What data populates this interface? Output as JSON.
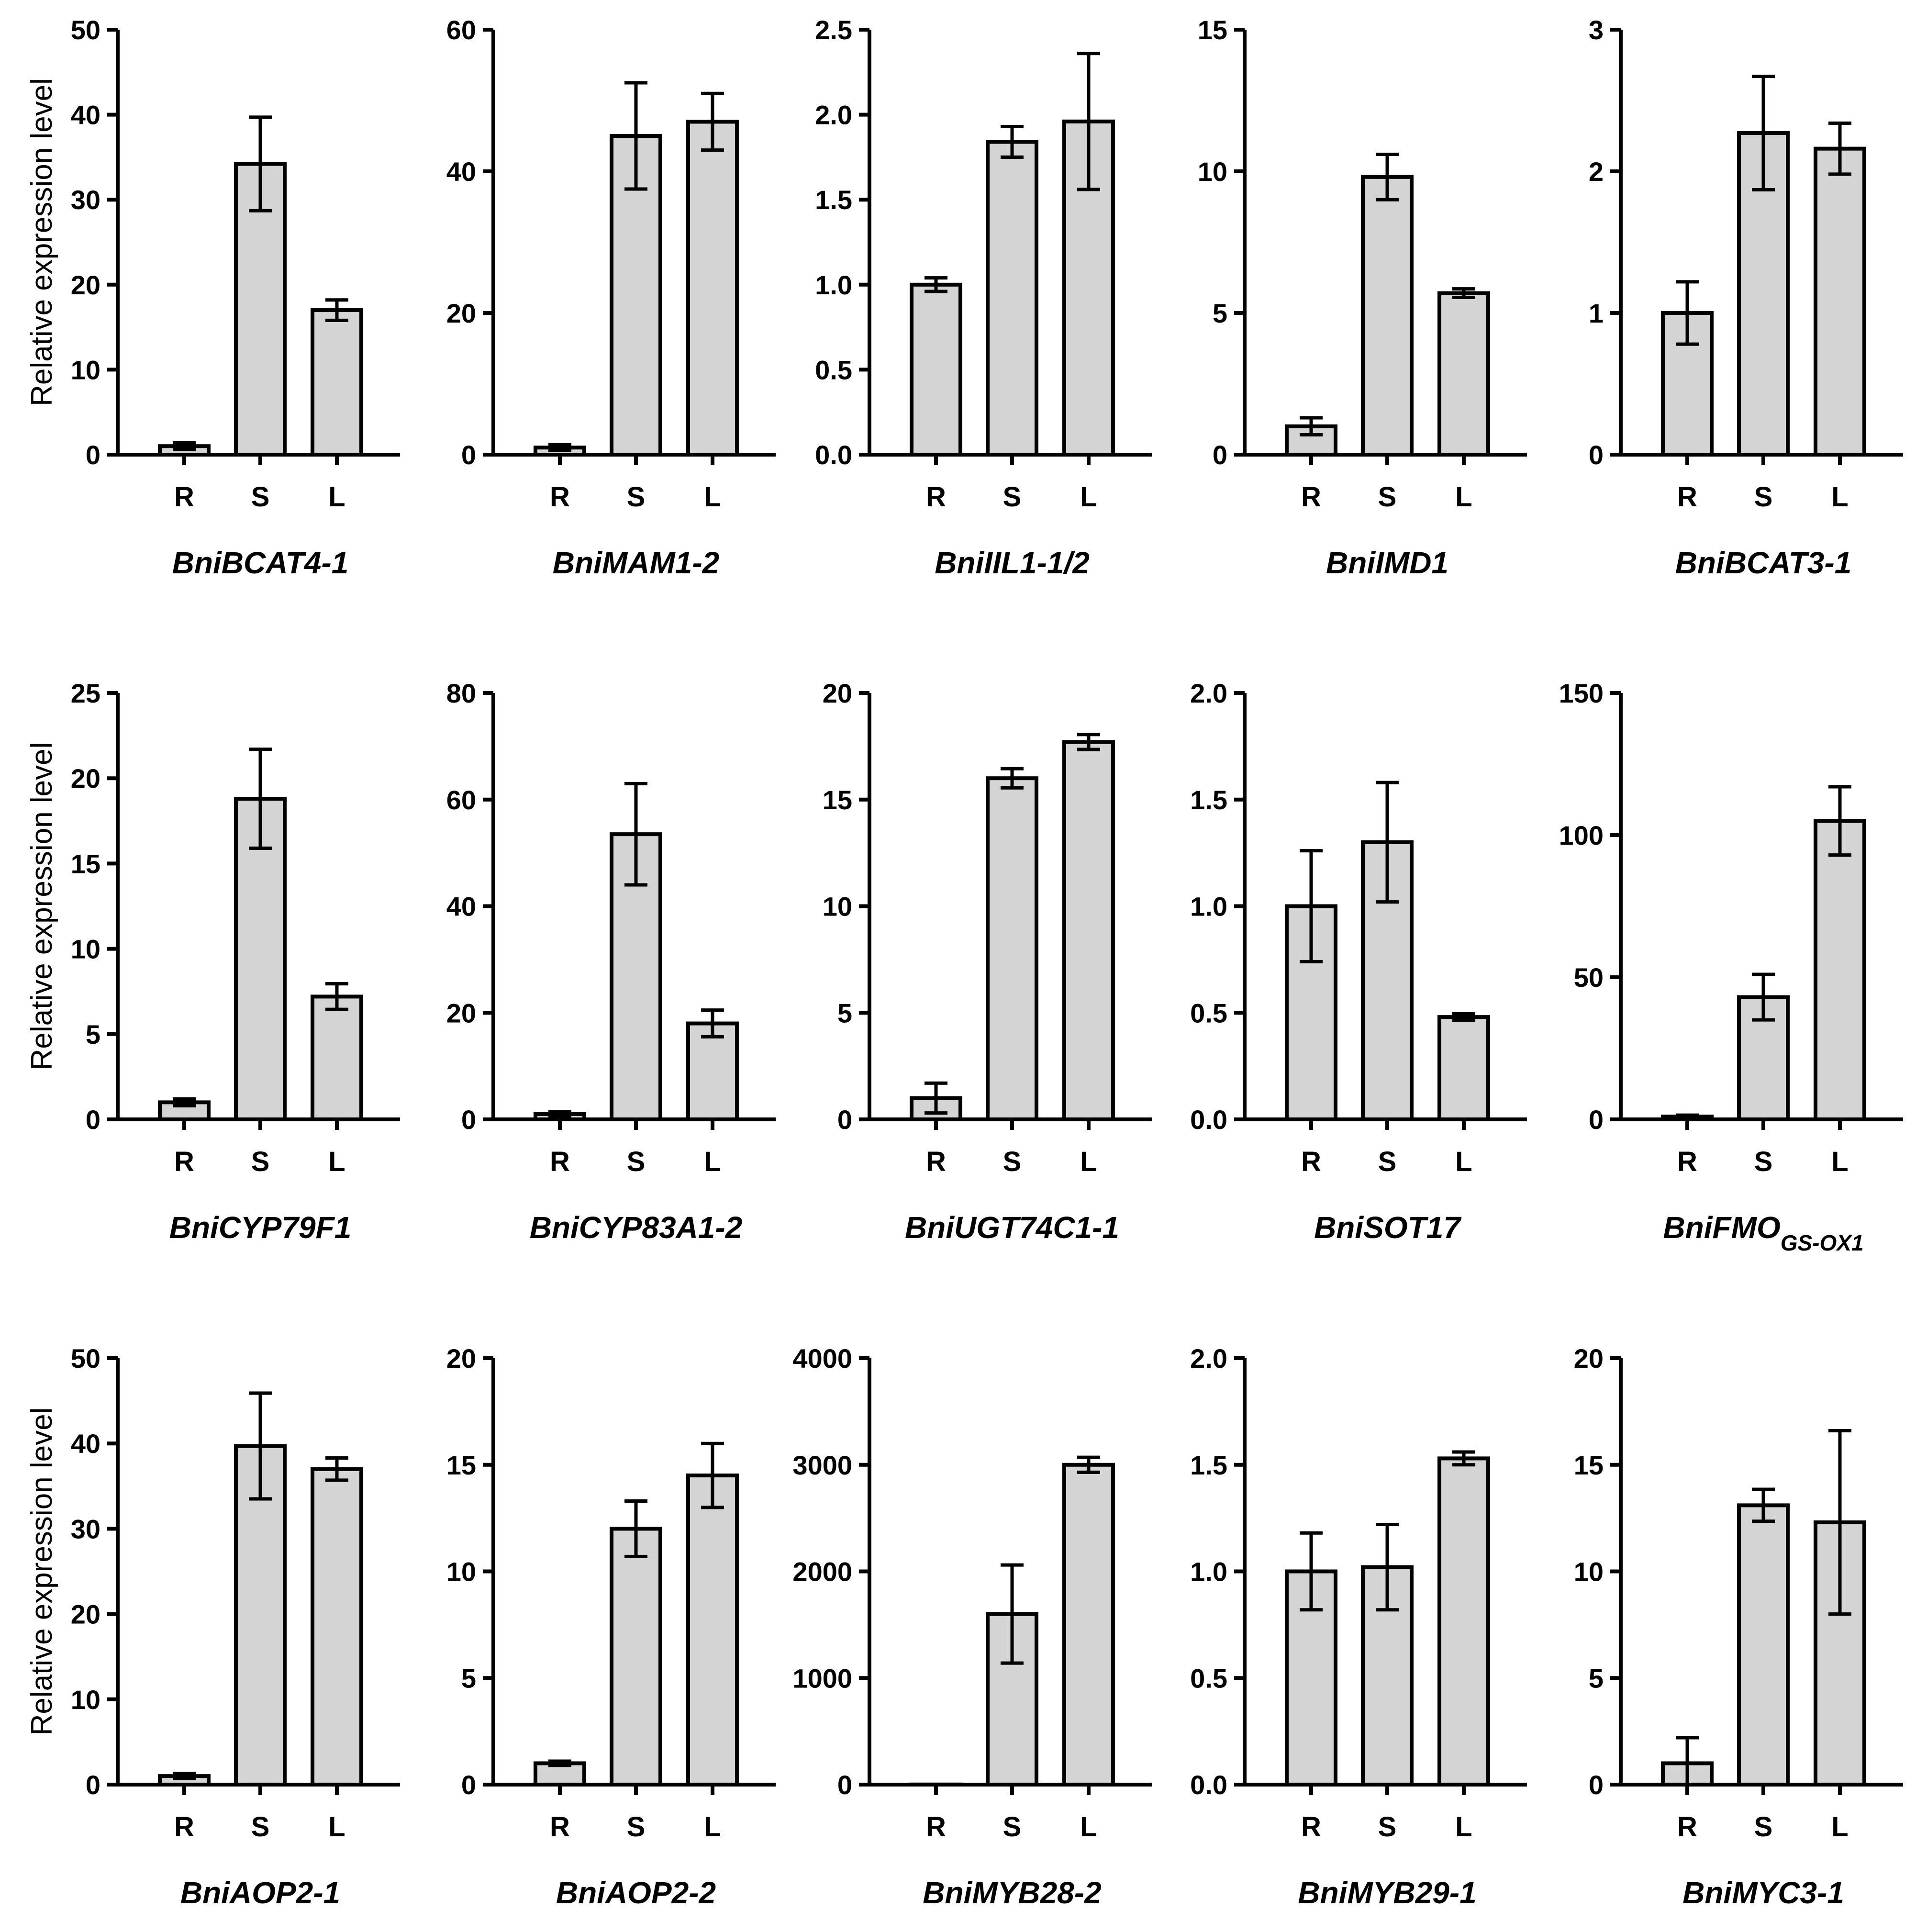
{
  "chart_data": [
    {
      "type": "bar",
      "title": "BniBCAT4-1",
      "ylabel": "Relative expression level",
      "categories": [
        "R",
        "S",
        "L"
      ],
      "values": [
        1,
        34.2,
        17
      ],
      "errors": [
        0.4,
        5.5,
        1.2
      ],
      "ylim": [
        0,
        50
      ],
      "yticks": [
        "0",
        "10",
        "20",
        "30",
        "40",
        "50"
      ]
    },
    {
      "type": "bar",
      "title": "BniMAM1-2",
      "ylabel": "",
      "categories": [
        "R",
        "S",
        "L"
      ],
      "values": [
        1,
        45,
        47
      ],
      "errors": [
        0.4,
        7.5,
        4
      ],
      "ylim": [
        0,
        60
      ],
      "yticks": [
        "0",
        "20",
        "40",
        "60"
      ]
    },
    {
      "type": "bar",
      "title": "BniIIL1-1/2",
      "ylabel": "",
      "categories": [
        "R",
        "S",
        "L"
      ],
      "values": [
        1,
        1.84,
        1.96
      ],
      "errors": [
        0.04,
        0.09,
        0.4
      ],
      "ylim": [
        0,
        2.5
      ],
      "yticks": [
        "0.0",
        "0.5",
        "1.0",
        "1.5",
        "2.0",
        "2.5"
      ]
    },
    {
      "type": "bar",
      "title": "BniIMD1",
      "ylabel": "",
      "categories": [
        "R",
        "S",
        "L"
      ],
      "values": [
        1,
        9.8,
        5.7
      ],
      "errors": [
        0.3,
        0.8,
        0.15
      ],
      "ylim": [
        0,
        15
      ],
      "yticks": [
        "0",
        "5",
        "10",
        "15"
      ]
    },
    {
      "type": "bar",
      "title": "BniBCAT3-1",
      "ylabel": "",
      "categories": [
        "R",
        "S",
        "L"
      ],
      "values": [
        1,
        2.27,
        2.16
      ],
      "errors": [
        0.22,
        0.4,
        0.18
      ],
      "ylim": [
        0,
        3
      ],
      "yticks": [
        "0",
        "1",
        "2",
        "3"
      ]
    },
    {
      "type": "bar",
      "title": "BniCYP79F1",
      "ylabel": "Relative expression level",
      "categories": [
        "R",
        "S",
        "L"
      ],
      "values": [
        1,
        18.8,
        7.2
      ],
      "errors": [
        0.2,
        2.9,
        0.75
      ],
      "ylim": [
        0,
        25
      ],
      "yticks": [
        "0",
        "5",
        "10",
        "15",
        "20",
        "25"
      ]
    },
    {
      "type": "bar",
      "title": "BniCYP83A1-2",
      "ylabel": "",
      "categories": [
        "R",
        "S",
        "L"
      ],
      "values": [
        1,
        53.5,
        18
      ],
      "errors": [
        0.4,
        9.5,
        2.5
      ],
      "ylim": [
        0,
        80
      ],
      "yticks": [
        "0",
        "20",
        "40",
        "60",
        "80"
      ]
    },
    {
      "type": "bar",
      "title": "BniUGT74C1-1",
      "ylabel": "",
      "categories": [
        "R",
        "S",
        "L"
      ],
      "values": [
        1,
        16,
        17.7
      ],
      "errors": [
        0.7,
        0.45,
        0.35
      ],
      "ylim": [
        0,
        20
      ],
      "yticks": [
        "0",
        "5",
        "10",
        "15",
        "20"
      ]
    },
    {
      "type": "bar",
      "title": "BniSOT17",
      "ylabel": "",
      "categories": [
        "R",
        "S",
        "L"
      ],
      "values": [
        1,
        1.3,
        0.48
      ],
      "errors": [
        0.26,
        0.28,
        0.015
      ],
      "ylim": [
        0,
        2
      ],
      "yticks": [
        "0.0",
        "0.5",
        "1.0",
        "1.5",
        "2.0"
      ]
    },
    {
      "type": "bar",
      "title": "BniFMO",
      "title_sub": "GS-OX1",
      "ylabel": "",
      "categories": [
        "R",
        "S",
        "L"
      ],
      "values": [
        1,
        43,
        105
      ],
      "errors": [
        0.5,
        8,
        12
      ],
      "ylim": [
        0,
        150
      ],
      "yticks": [
        "0",
        "50",
        "100",
        "150"
      ]
    },
    {
      "type": "bar",
      "title": "BniAOP2-1",
      "ylabel": "Relative expression level",
      "categories": [
        "R",
        "S",
        "L"
      ],
      "values": [
        1,
        39.7,
        37
      ],
      "errors": [
        0.3,
        6.2,
        1.3
      ],
      "ylim": [
        0,
        50
      ],
      "yticks": [
        "0",
        "10",
        "20",
        "30",
        "40",
        "50"
      ]
    },
    {
      "type": "bar",
      "title": "BniAOP2-2",
      "ylabel": "",
      "categories": [
        "R",
        "S",
        "L"
      ],
      "values": [
        1,
        12,
        14.5
      ],
      "errors": [
        0.1,
        1.3,
        1.5
      ],
      "ylim": [
        0,
        20
      ],
      "yticks": [
        "0",
        "5",
        "10",
        "15",
        "20"
      ]
    },
    {
      "type": "bar",
      "title": "BniMYB28-2",
      "ylabel": "",
      "categories": [
        "R",
        "S",
        "L"
      ],
      "values": [
        1,
        1600,
        3000
      ],
      "errors": [
        0.5,
        460,
        70
      ],
      "ylim": [
        0,
        4000
      ],
      "yticks": [
        "0",
        "1000",
        "2000",
        "3000",
        "4000"
      ]
    },
    {
      "type": "bar",
      "title": "BniMYB29-1",
      "ylabel": "",
      "categories": [
        "R",
        "S",
        "L"
      ],
      "values": [
        1,
        1.02,
        1.53
      ],
      "errors": [
        0.18,
        0.2,
        0.03
      ],
      "ylim": [
        0,
        2
      ],
      "yticks": [
        "0.0",
        "0.5",
        "1.0",
        "1.5",
        "2.0"
      ]
    },
    {
      "type": "bar",
      "title": "BniMYC3-1",
      "ylabel": "",
      "categories": [
        "R",
        "S",
        "L"
      ],
      "values": [
        1,
        13.1,
        12.3
      ],
      "errors": [
        1.2,
        0.75,
        4.3
      ],
      "ylim": [
        0,
        20
      ],
      "yticks": [
        "0",
        "5",
        "10",
        "15",
        "20"
      ]
    }
  ]
}
